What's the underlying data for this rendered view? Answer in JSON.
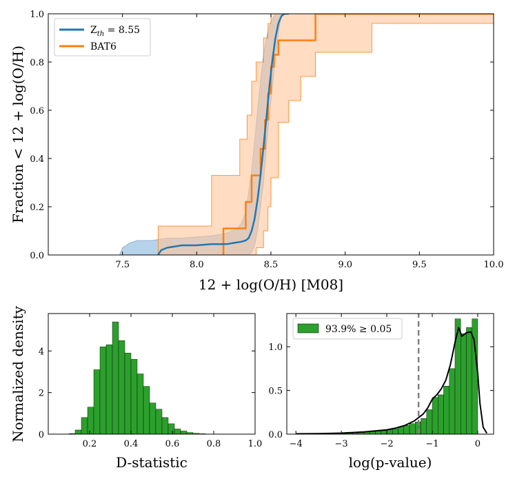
{
  "chart_data": [
    {
      "type": "line",
      "panel": "top",
      "xlabel": "12 + log(O/H) [M08]",
      "ylabel": "Fraction < 12 + log(O/H)",
      "xlim": [
        7.0,
        10.0
      ],
      "ylim": [
        0.0,
        1.0
      ],
      "xticks": [
        7.5,
        8.0,
        8.5,
        9.0,
        9.5,
        10.0
      ],
      "xtick_labels": [
        "7.5",
        "8.0",
        "8.5",
        "9.0",
        "9.5",
        "10.0"
      ],
      "yticks": [
        0.0,
        0.2,
        0.4,
        0.6,
        0.8,
        1.0
      ],
      "ytick_labels": [
        "0.0",
        "0.2",
        "0.4",
        "0.6",
        "0.8",
        "1.0"
      ],
      "grid": false,
      "legend_position": "top-left",
      "series": [
        {
          "name": "Z_th = 8.55",
          "legend_main": "Z",
          "legend_sub": "th",
          "legend_rest": " = 8.55",
          "color": "#1f77b4",
          "x": [
            7.74,
            7.76,
            7.8,
            7.9,
            8.0,
            8.1,
            8.2,
            8.25,
            8.3,
            8.33,
            8.35,
            8.37,
            8.39,
            8.41,
            8.43,
            8.45,
            8.47,
            8.49,
            8.51,
            8.53,
            8.55,
            8.57,
            8.59,
            8.62
          ],
          "y": [
            0.0,
            0.02,
            0.03,
            0.04,
            0.04,
            0.045,
            0.045,
            0.05,
            0.055,
            0.06,
            0.07,
            0.1,
            0.15,
            0.23,
            0.33,
            0.45,
            0.57,
            0.7,
            0.81,
            0.9,
            0.96,
            0.99,
            1.0,
            1.0
          ],
          "band": {
            "color": "#8fbcdf",
            "x": [
              7.48,
              7.5,
              7.55,
              7.6,
              7.7,
              7.8,
              7.9,
              8.0,
              8.1,
              8.2,
              8.27,
              8.3,
              8.33,
              8.35,
              8.37,
              8.39,
              8.41,
              8.43,
              8.45,
              8.47,
              8.49,
              8.51,
              8.53,
              8.55,
              8.57
            ],
            "upper": [
              0.0,
              0.03,
              0.05,
              0.06,
              0.06,
              0.07,
              0.07,
              0.075,
              0.08,
              0.09,
              0.11,
              0.13,
              0.18,
              0.26,
              0.35,
              0.47,
              0.6,
              0.72,
              0.83,
              0.9,
              0.95,
              0.98,
              1.0,
              1.0,
              1.0
            ],
            "lower": [
              0.0,
              0.0,
              0.0,
              0.0,
              0.0,
              0.0,
              0.0,
              0.0,
              0.0,
              0.0,
              0.0,
              0.0,
              0.0,
              0.0,
              0.01,
              0.04,
              0.1,
              0.2,
              0.3,
              0.45,
              0.58,
              0.7,
              0.82,
              0.92,
              1.0
            ]
          }
        },
        {
          "name": "BAT6",
          "color": "#ff7f0e",
          "step": true,
          "x": [
            8.18,
            8.18,
            8.33,
            8.33,
            8.37,
            8.37,
            8.43,
            8.43,
            8.46,
            8.46,
            8.48,
            8.48,
            8.5,
            8.5,
            8.52,
            8.52,
            8.55,
            8.55,
            8.57,
            8.57,
            8.62,
            8.62,
            8.8,
            8.8,
            10.0
          ],
          "y": [
            0.0,
            0.11,
            0.11,
            0.22,
            0.22,
            0.33,
            0.33,
            0.44,
            0.44,
            0.56,
            0.56,
            0.67,
            0.67,
            0.78,
            0.78,
            0.83,
            0.83,
            0.89,
            0.89,
            0.89,
            0.89,
            0.89,
            0.89,
            1.0,
            1.0
          ],
          "band": {
            "color": "#ffc599",
            "x": [
              7.74,
              7.74,
              8.1,
              8.1,
              8.29,
              8.29,
              8.34,
              8.34,
              8.37,
              8.37,
              8.4,
              8.4,
              8.45,
              8.45,
              8.48,
              8.48,
              8.5,
              8.5,
              8.55,
              8.55,
              8.62,
              8.62,
              8.7,
              8.7,
              8.8,
              8.8,
              9.18,
              9.18,
              10.0
            ],
            "upper": [
              0.0,
              0.12,
              0.12,
              0.33,
              0.33,
              0.48,
              0.48,
              0.58,
              0.58,
              0.72,
              0.72,
              0.8,
              0.8,
              0.9,
              0.9,
              0.96,
              0.96,
              1.0,
              1.0,
              1.0,
              1.0,
              1.0,
              1.0,
              1.0,
              1.0,
              1.0,
              1.0,
              1.0,
              1.0
            ],
            "lower": [
              0.0,
              0.0,
              0.0,
              0.0,
              0.0,
              0.0,
              0.0,
              0.0,
              0.0,
              0.0,
              0.0,
              0.03,
              0.03,
              0.1,
              0.1,
              0.2,
              0.2,
              0.32,
              0.32,
              0.55,
              0.55,
              0.64,
              0.64,
              0.74,
              0.74,
              0.84,
              0.84,
              0.96,
              0.96
            ]
          }
        }
      ]
    },
    {
      "type": "bar",
      "panel": "bottom-left",
      "xlabel": "D-statistic",
      "ylabel": "Normalized density",
      "xlim": [
        0.0,
        1.0
      ],
      "ylim": [
        0.0,
        5.8
      ],
      "xticks": [
        0.2,
        0.4,
        0.6,
        0.8,
        1.0
      ],
      "xtick_labels": [
        "0.2",
        "0.4",
        "0.6",
        "0.8",
        "1.0"
      ],
      "yticks": [
        0,
        2,
        4
      ],
      "ytick_labels": [
        "0",
        "2",
        "4"
      ],
      "bar_color": "#2ca02c",
      "bin_edges": [
        0.1,
        0.13,
        0.16,
        0.19,
        0.22,
        0.25,
        0.28,
        0.31,
        0.34,
        0.37,
        0.4,
        0.43,
        0.46,
        0.49,
        0.52,
        0.55,
        0.58,
        0.61,
        0.64,
        0.67,
        0.7,
        0.73,
        0.76
      ],
      "values": [
        0.03,
        0.2,
        0.8,
        1.3,
        3.1,
        4.2,
        4.3,
        5.4,
        4.5,
        3.9,
        3.6,
        2.9,
        2.3,
        1.5,
        1.2,
        0.8,
        0.5,
        0.25,
        0.15,
        0.08,
        0.04,
        0.02
      ]
    },
    {
      "type": "bar",
      "panel": "bottom-right",
      "xlabel": "log(p-value)",
      "ylabel": "",
      "xlim": [
        -4.2,
        0.35
      ],
      "ylim": [
        0.0,
        1.38
      ],
      "xticks": [
        -4,
        -3,
        -2,
        -1,
        0
      ],
      "xtick_labels": [
        "−4",
        "−3",
        "−2",
        "−1",
        "0"
      ],
      "yticks": [
        0.0,
        0.5,
        1.0
      ],
      "ytick_labels": [
        "0.0",
        "0.5",
        "1.0"
      ],
      "bar_color": "#2ca02c",
      "legend_text": "93.9% ≥ 0.05",
      "legend_position": "top-left",
      "threshold": {
        "x": -1.30103,
        "color": "#808080",
        "style": "dashed"
      },
      "bin_edges": [
        -4.0,
        -3.875,
        -3.75,
        -3.625,
        -3.5,
        -3.375,
        -3.25,
        -3.125,
        -3.0,
        -2.875,
        -2.75,
        -2.625,
        -2.5,
        -2.375,
        -2.25,
        -2.125,
        -2.0,
        -1.875,
        -1.75,
        -1.625,
        -1.5,
        -1.375,
        -1.25,
        -1.125,
        -1.0,
        -0.875,
        -0.75,
        -0.625,
        -0.5,
        -0.375,
        -0.25,
        -0.125,
        0.0
      ],
      "values": [
        0.005,
        0.005,
        0.005,
        0.005,
        0.006,
        0.006,
        0.007,
        0.008,
        0.01,
        0.012,
        0.015,
        0.02,
        0.025,
        0.03,
        0.035,
        0.04,
        0.05,
        0.06,
        0.08,
        0.1,
        0.12,
        0.14,
        0.18,
        0.28,
        0.42,
        0.45,
        0.55,
        0.75,
        1.32,
        1.15,
        1.22,
        1.32
      ],
      "kde_x": [
        -4.0,
        -3.5,
        -3.0,
        -2.5,
        -2.0,
        -1.8,
        -1.6,
        -1.4,
        -1.2,
        -1.1,
        -1.0,
        -0.9,
        -0.8,
        -0.7,
        -0.6,
        -0.5,
        -0.42,
        -0.35,
        -0.25,
        -0.15,
        -0.08,
        0.0,
        0.05,
        0.12,
        0.2
      ],
      "kde_y": [
        0.004,
        0.006,
        0.012,
        0.025,
        0.05,
        0.07,
        0.1,
        0.15,
        0.23,
        0.3,
        0.4,
        0.45,
        0.52,
        0.62,
        0.8,
        1.05,
        1.22,
        1.12,
        1.16,
        1.17,
        1.08,
        0.7,
        0.35,
        0.08,
        0.01
      ],
      "kde_color": "#000000"
    }
  ]
}
